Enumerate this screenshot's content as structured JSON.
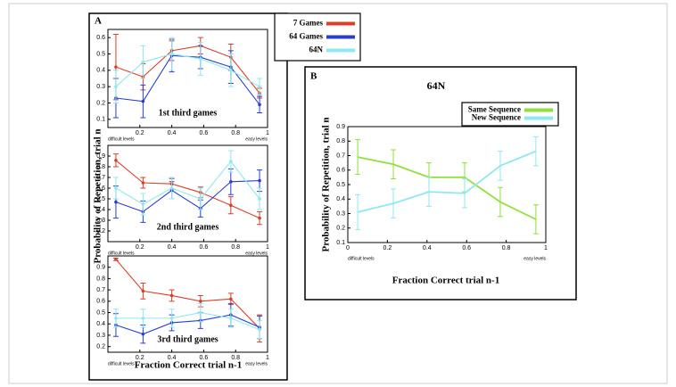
{
  "panels": [
    {
      "letter": "A",
      "ylabel": "Probability of Repetition, trial n",
      "xlabel": "Fraction Correct trial n-1"
    },
    {
      "letter": "B",
      "ylabel": "Probability of Repetition, trial n",
      "xlabel": "Fraction Correct trial n-1"
    }
  ],
  "chart_data": [
    {
      "type": "line",
      "title": "1st third games",
      "legend": "outside-top-right",
      "x": [
        0.05,
        0.22,
        0.4,
        0.58,
        0.77,
        0.95
      ],
      "series": [
        {
          "name": "7 Games",
          "color": "#d8402a",
          "values": [
            0.42,
            0.36,
            0.52,
            0.55,
            0.48,
            0.26
          ],
          "errors": [
            0.2,
            0.08,
            0.06,
            0.05,
            0.08,
            0.03
          ]
        },
        {
          "name": "64 Games",
          "color": "#2a3fd0",
          "values": [
            0.23,
            0.21,
            0.49,
            0.48,
            0.42,
            0.19
          ],
          "errors": [
            0.12,
            0.1,
            0.1,
            0.07,
            0.1,
            0.05
          ]
        },
        {
          "name": "64N",
          "color": "#8ee8f0",
          "values": [
            0.3,
            0.45,
            0.5,
            0.47,
            0.4,
            0.3
          ],
          "errors": [
            0.1,
            0.1,
            0.1,
            0.1,
            0.1,
            0.05
          ]
        }
      ],
      "xlim": [
        0,
        1
      ],
      "ylim": [
        0.05,
        0.65
      ],
      "xticks": [
        0.2,
        0.4,
        0.6,
        0.8,
        1
      ],
      "yticks": [
        0.1,
        0.2,
        0.3,
        0.4,
        0.5,
        0.6
      ],
      "annotations": [
        "difficult levels",
        "easy levels"
      ]
    },
    {
      "type": "line",
      "title": "2nd third games",
      "x": [
        0.05,
        0.22,
        0.4,
        0.58,
        0.77,
        0.95
      ],
      "series": [
        {
          "color": "#d8402a",
          "values": [
            0.86,
            0.65,
            0.64,
            0.56,
            0.44,
            0.32
          ],
          "errors": [
            0.06,
            0.05,
            0.05,
            0.05,
            0.08,
            0.06
          ]
        },
        {
          "color": "#2a3fd0",
          "values": [
            0.47,
            0.38,
            0.58,
            0.41,
            0.66,
            0.67
          ],
          "errors": [
            0.15,
            0.1,
            0.08,
            0.08,
            0.12,
            0.1
          ]
        },
        {
          "color": "#8ee8f0",
          "values": [
            0.6,
            0.45,
            0.6,
            0.5,
            0.85,
            0.5
          ],
          "errors": [
            0.1,
            0.1,
            0.1,
            0.1,
            0.1,
            0.1
          ]
        }
      ],
      "xlim": [
        0,
        1
      ],
      "ylim": [
        0.1,
        1.0
      ],
      "xticks": [
        0.2,
        0.4,
        0.6,
        0.8,
        1
      ],
      "yticks": [
        0.2,
        0.3,
        0.4,
        0.5,
        0.6,
        0.7,
        0.8,
        0.9
      ],
      "annotations": [
        "difficult levels",
        "easy levels"
      ]
    },
    {
      "type": "line",
      "title": "3rd third games",
      "x": [
        0.05,
        0.22,
        0.4,
        0.58,
        0.77,
        0.95
      ],
      "series": [
        {
          "color": "#d8402a",
          "values": [
            0.97,
            0.69,
            0.65,
            0.6,
            0.62,
            0.36
          ],
          "errors": [
            0.01,
            0.07,
            0.05,
            0.05,
            0.05,
            0.12
          ]
        },
        {
          "color": "#2a3fd0",
          "values": [
            0.39,
            0.31,
            0.41,
            0.43,
            0.48,
            0.37
          ],
          "errors": [
            0.1,
            0.08,
            0.07,
            0.07,
            0.1,
            0.1
          ]
        },
        {
          "color": "#8ee8f0",
          "values": [
            0.45,
            0.45,
            0.45,
            0.5,
            0.45,
            0.35
          ],
          "errors": [
            0.08,
            0.08,
            0.08,
            0.08,
            0.08,
            0.08
          ]
        }
      ],
      "xlim": [
        0,
        1
      ],
      "ylim": [
        0.15,
        1.0
      ],
      "xticks": [
        0.2,
        0.4,
        0.6,
        0.8,
        1
      ],
      "yticks": [
        0.2,
        0.3,
        0.4,
        0.5,
        0.6,
        0.7,
        0.8,
        0.9
      ],
      "annotations": [
        "difficult levels",
        "easy levels"
      ]
    },
    {
      "type": "line",
      "title": "64N",
      "legend": "top-right",
      "x": [
        0.05,
        0.23,
        0.41,
        0.59,
        0.77,
        0.95
      ],
      "series": [
        {
          "name": "Same Sequence",
          "color": "#8fe03c",
          "values": [
            0.69,
            0.64,
            0.55,
            0.55,
            0.38,
            0.26
          ],
          "errors": [
            0.12,
            0.1,
            0.1,
            0.1,
            0.1,
            0.1
          ]
        },
        {
          "name": "New Sequence",
          "color": "#8ee8f0",
          "values": [
            0.31,
            0.37,
            0.45,
            0.44,
            0.63,
            0.73
          ],
          "errors": [
            0.12,
            0.1,
            0.1,
            0.1,
            0.1,
            0.1
          ]
        }
      ],
      "xlim": [
        0,
        1
      ],
      "ylim": [
        0.1,
        0.9
      ],
      "xticks": [
        0,
        0.2,
        0.4,
        0.6,
        0.8,
        1
      ],
      "yticks": [
        0.1,
        0.2,
        0.3,
        0.4,
        0.5,
        0.6,
        0.7,
        0.8,
        0.9
      ],
      "annotations": [
        "difficult levels",
        "easy levels"
      ]
    }
  ]
}
